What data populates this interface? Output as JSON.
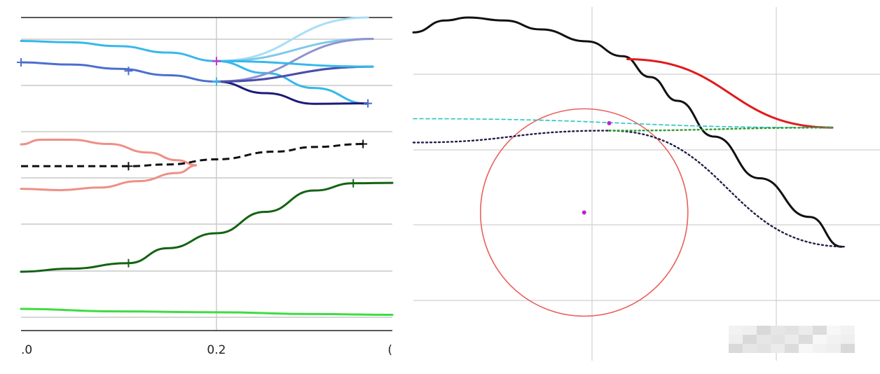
{
  "chart_data": [
    {
      "type": "line",
      "xlim": [
        0.0,
        0.38
      ],
      "ylim": [
        0.0,
        7.0
      ],
      "grid": true,
      "x_ticks": [
        0.0,
        0.2,
        0.38
      ],
      "x_tick_labels": [
        ".0",
        "0.2",
        "("
      ],
      "colors": {
        "cyan": "#36b8ea",
        "blue": "#4a6fcf",
        "navy": "#1c1a7a",
        "salmon": "#ef8f86",
        "black": "#111111",
        "dkgreen": "#136313",
        "green": "#3fdc3f",
        "magenta": "#cc33cc",
        "fan": [
          "#a8def5",
          "#7fc8ec",
          "#8f93cf",
          "#6c6fbf",
          "#4a4ea8"
        ]
      },
      "series": [
        {
          "style": "solid",
          "color": "cyan",
          "x": [
            0.0,
            0.05,
            0.1,
            0.15,
            0.2,
            0.25,
            0.3,
            0.355
          ],
          "y": [
            6.45,
            6.42,
            6.33,
            6.18,
            5.98,
            5.7,
            5.35,
            4.98
          ]
        },
        {
          "style": "solid",
          "color": "blue",
          "x": [
            0.0,
            0.05,
            0.1,
            0.15,
            0.2
          ],
          "y": [
            5.95,
            5.9,
            5.8,
            5.65,
            5.5
          ]
        },
        {
          "style": "solid",
          "color": "navy",
          "x": [
            0.2,
            0.25,
            0.3,
            0.355
          ],
          "y": [
            5.5,
            5.23,
            4.98,
            4.99
          ]
        },
        {
          "style": "solid",
          "color": "salmon",
          "x": [
            0.0,
            0.02,
            0.05,
            0.09,
            0.13,
            0.16,
            0.18,
            0.16,
            0.12,
            0.08,
            0.04,
            0.0
          ],
          "y": [
            4.03,
            4.14,
            4.14,
            4.04,
            3.84,
            3.66,
            3.54,
            3.36,
            3.17,
            3.02,
            2.96,
            2.99
          ]
        },
        {
          "style": "dashed",
          "color": "black",
          "x": [
            0.0,
            0.05,
            0.11,
            0.15,
            0.2,
            0.26,
            0.3,
            0.35
          ],
          "y": [
            3.52,
            3.52,
            3.52,
            3.56,
            3.68,
            3.86,
            3.97,
            4.04
          ]
        },
        {
          "style": "solid",
          "color": "dkgreen",
          "x": [
            0.0,
            0.05,
            0.11,
            0.15,
            0.2,
            0.25,
            0.3,
            0.34,
            0.38
          ],
          "y": [
            1.05,
            1.12,
            1.25,
            1.6,
            1.95,
            2.45,
            2.95,
            3.12,
            3.13
          ]
        },
        {
          "style": "solid",
          "color": "green",
          "x": [
            0.0,
            0.1,
            0.2,
            0.3,
            0.38
          ],
          "y": [
            0.18,
            0.12,
            0.1,
            0.06,
            0.04
          ]
        },
        {
          "style": "solid",
          "color": "fan0",
          "x": [
            0.2,
            0.355
          ],
          "y": [
            5.98,
            7.0
          ]
        },
        {
          "style": "solid",
          "color": "fan1",
          "x": [
            0.2,
            0.36
          ],
          "y": [
            5.98,
            6.5
          ]
        },
        {
          "style": "solid",
          "color": "fan2",
          "x": [
            0.2,
            0.36
          ],
          "y": [
            5.5,
            6.5
          ]
        },
        {
          "style": "solid",
          "color": "fan3",
          "x": [
            0.2,
            0.36
          ],
          "y": [
            5.5,
            5.85
          ]
        },
        {
          "style": "solid",
          "color": "fan4",
          "x": [
            0.2,
            0.36
          ],
          "y": [
            5.5,
            5.85
          ]
        },
        {
          "style": "solid",
          "color": "cyan",
          "x": [
            0.2,
            0.36
          ],
          "y": [
            5.98,
            5.85
          ]
        }
      ],
      "markers": [
        {
          "x": 0.0,
          "y": 5.95,
          "color": "blue"
        },
        {
          "x": 0.11,
          "y": 5.75,
          "color": "blue"
        },
        {
          "x": 0.2,
          "y": 5.5,
          "color": "cyan"
        },
        {
          "x": 0.2,
          "y": 5.98,
          "color": "magenta"
        },
        {
          "x": 0.355,
          "y": 4.99,
          "color": "blue"
        },
        {
          "x": 0.11,
          "y": 3.52,
          "color": "black"
        },
        {
          "x": 0.35,
          "y": 4.04,
          "color": "black"
        },
        {
          "x": 0.11,
          "y": 1.25,
          "color": "dkgreen"
        },
        {
          "x": 0.34,
          "y": 3.12,
          "color": "dkgreen"
        }
      ]
    },
    {
      "type": "scatter",
      "xlim": [
        0.0,
        1.0
      ],
      "ylim": [
        0.0,
        1.0
      ],
      "grid": true,
      "colors": {
        "black": "#111111",
        "red": "#e21a1a",
        "circle": "#e8605c",
        "teal": "#26c4c4",
        "green": "#2e9a2e",
        "navy": "#1f1f4a",
        "magenta": "#bb22cc"
      },
      "curves": [
        {
          "name_key": "black-curve",
          "color": "black",
          "x": [
            0.0,
            0.07,
            0.12,
            0.2,
            0.28,
            0.38,
            0.46,
            0.52,
            0.58,
            0.66,
            0.76,
            0.87,
            0.94
          ],
          "y": [
            0.95,
            0.99,
            1.0,
            0.99,
            0.96,
            0.92,
            0.87,
            0.8,
            0.72,
            0.6,
            0.46,
            0.33,
            0.23
          ]
        },
        {
          "name_key": "red-line",
          "color": "red",
          "x": [
            0.47,
            0.92
          ],
          "y": [
            0.86,
            0.63
          ]
        },
        {
          "name_key": "teal-dashed-line",
          "color": "teal",
          "x": [
            0.0,
            0.92
          ],
          "y": [
            0.66,
            0.63
          ]
        },
        {
          "name_key": "navy-dotted-upper",
          "color": "navy",
          "x": [
            0.0,
            0.43
          ],
          "y": [
            0.58,
            0.62
          ]
        },
        {
          "name_key": "navy-dotted-lower",
          "color": "navy",
          "x": [
            0.43,
            0.95
          ],
          "y": [
            0.62,
            0.23
          ]
        },
        {
          "name_key": "green-dotted",
          "color": "green",
          "x": [
            0.43,
            0.92
          ],
          "y": [
            0.62,
            0.63
          ]
        }
      ],
      "circle": {
        "cx": 0.375,
        "cy": 0.345,
        "r": 0.345,
        "color": "circle"
      },
      "points": [
        {
          "x": 0.375,
          "y": 0.345,
          "color": "magenta"
        },
        {
          "x": 0.43,
          "y": 0.645,
          "color": "magenta"
        }
      ]
    }
  ]
}
